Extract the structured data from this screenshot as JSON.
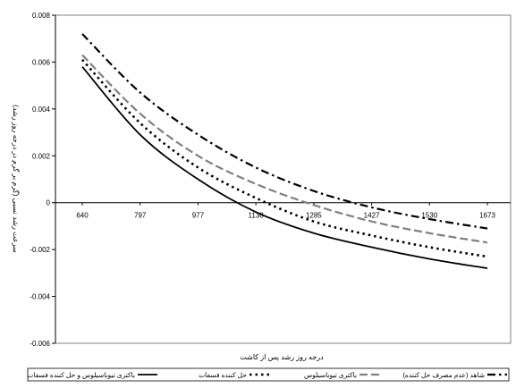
{
  "chart_data": {
    "type": "line",
    "xlabel": "درجه روز رشد پس از کاشت",
    "ylabel": "سرعت رشد نسبی (گرم بر گرم در درجه روز رشد)",
    "x_ticks": [
      "640",
      "797",
      "977",
      "1138",
      "1285",
      "1427",
      "1530",
      "1673"
    ],
    "ylim": [
      -0.006,
      0.008
    ],
    "y_ticks": [
      "0.008",
      "0.006",
      "0.004",
      "0.002",
      "0",
      "-0.002",
      "-0.004",
      "-0.006"
    ],
    "grid": false,
    "legend_position": "bottom",
    "series": [
      {
        "name": "شاهد (عدم مصرف حل کننده)",
        "style": "dash-dot",
        "color": "#000000",
        "values": [
          0.0072,
          0.0047,
          0.0029,
          0.0015,
          0.0005,
          -0.0002,
          -0.0007,
          -0.0011
        ]
      },
      {
        "name": "باکتری تیوباسیلوس",
        "style": "dash",
        "color": "#808080",
        "values": [
          0.0063,
          0.0038,
          0.002,
          0.0008,
          -0.0001,
          -0.0008,
          -0.0013,
          -0.0017
        ]
      },
      {
        "name": "حل کننده فسفات",
        "style": "dot",
        "color": "#000000",
        "values": [
          0.0061,
          0.0034,
          0.0015,
          0.0002,
          -0.0008,
          -0.0014,
          -0.0019,
          -0.0023
        ]
      },
      {
        "name": "باکتری تیوباسیلوس و حل کننده فسفات",
        "style": "solid",
        "color": "#000000",
        "values": [
          0.0058,
          0.0029,
          0.001,
          -0.0004,
          -0.0013,
          -0.0019,
          -0.0024,
          -0.0028
        ]
      }
    ]
  }
}
